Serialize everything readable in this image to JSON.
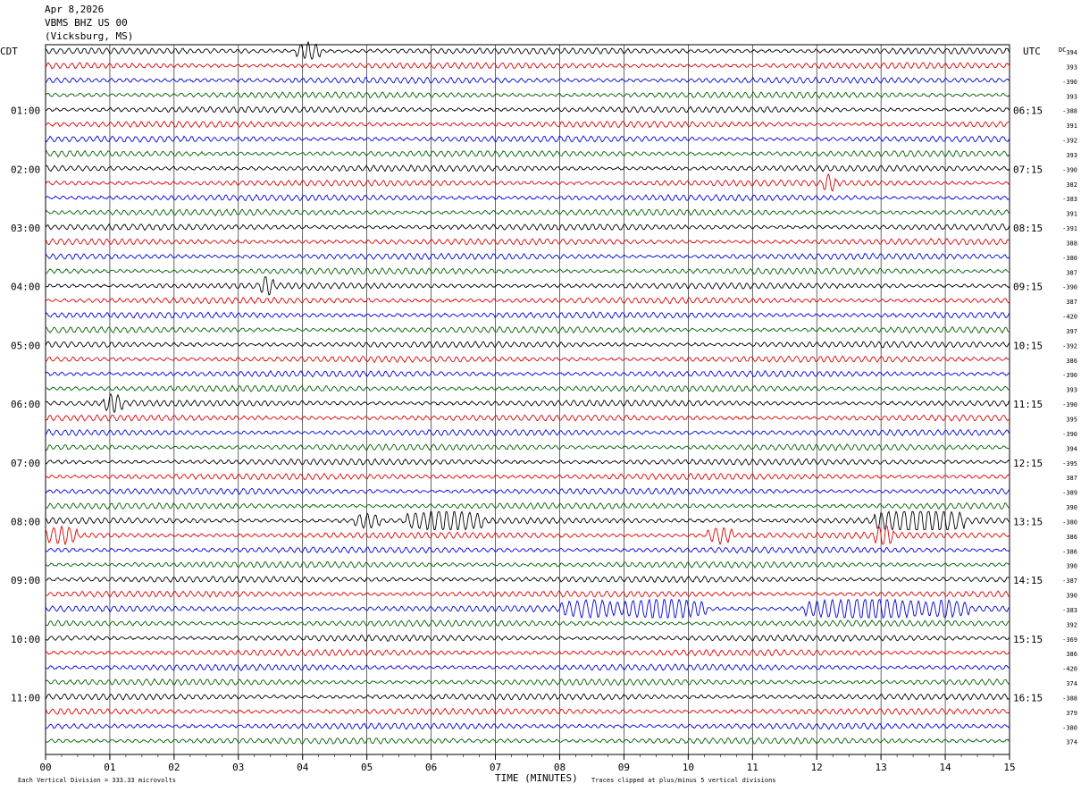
{
  "header": {
    "date": "Apr 8,2026",
    "station": "VBMS BHZ US 00",
    "location": "(Vicksburg, MS)"
  },
  "labels": {
    "left_zone": "CDT",
    "right_zone": "UTC",
    "dc_header": "DC",
    "xlabel": "TIME (MINUTES)",
    "scale_note": "Each Vertical Division =  333.33 microvolts",
    "clip_note": "Traces clipped at plus/minus 5 vertical divisions"
  },
  "chart_data": {
    "type": "line",
    "xlim": [
      0,
      15
    ],
    "x_ticks": [
      "00",
      "01",
      "02",
      "03",
      "04",
      "05",
      "06",
      "07",
      "08",
      "09",
      "10",
      "11",
      "12",
      "13",
      "14",
      "15"
    ],
    "left_hour_labels": [
      {
        "trace": 4,
        "label": "01:00"
      },
      {
        "trace": 8,
        "label": "02:00"
      },
      {
        "trace": 12,
        "label": "03:00"
      },
      {
        "trace": 16,
        "label": "04:00"
      },
      {
        "trace": 20,
        "label": "05:00"
      },
      {
        "trace": 24,
        "label": "06:00"
      },
      {
        "trace": 28,
        "label": "07:00"
      },
      {
        "trace": 32,
        "label": "08:00"
      },
      {
        "trace": 36,
        "label": "09:00"
      },
      {
        "trace": 40,
        "label": "10:00"
      },
      {
        "trace": 44,
        "label": "11:00"
      }
    ],
    "right_hour_labels": [
      {
        "trace": 4,
        "label": "06:15"
      },
      {
        "trace": 8,
        "label": "07:15"
      },
      {
        "trace": 12,
        "label": "08:15"
      },
      {
        "trace": 16,
        "label": "09:15"
      },
      {
        "trace": 20,
        "label": "10:15"
      },
      {
        "trace": 24,
        "label": "11:15"
      },
      {
        "trace": 28,
        "label": "12:15"
      },
      {
        "trace": 32,
        "label": "13:15"
      },
      {
        "trace": 36,
        "label": "14:15"
      },
      {
        "trace": 40,
        "label": "15:15"
      },
      {
        "trace": 44,
        "label": "16:15"
      }
    ],
    "dc_values": [
      "394",
      "393",
      "-390",
      "393",
      "-388",
      "391",
      "-392",
      "393",
      "-390",
      "382",
      "-383",
      "391",
      "-391",
      "388",
      "-380",
      "387",
      "-390",
      "387",
      "-420",
      "397",
      "-392",
      "386",
      "-390",
      "393",
      "-390",
      "395",
      "-390",
      "394",
      "-395",
      "387",
      "-389",
      "390",
      "-380",
      "386",
      "-386",
      "390",
      "-387",
      "390",
      "-383",
      "392",
      "-369",
      "386",
      "-420",
      "374",
      "-388",
      "379",
      "-380",
      "374"
    ],
    "trace_colors": [
      "#000000",
      "#e00000",
      "#0000e0",
      "#006000"
    ],
    "events": [
      {
        "trace": 0,
        "x_start": 3.9,
        "x_end": 4.3,
        "amplitude": 2.0
      },
      {
        "trace": 16,
        "x_start": 3.35,
        "x_end": 3.55,
        "amplitude": 2.0
      },
      {
        "trace": 24,
        "x_start": 0.9,
        "x_end": 1.2,
        "amplitude": 2.0
      },
      {
        "trace": 32,
        "x_start": 4.8,
        "x_end": 5.2,
        "amplitude": 1.6
      },
      {
        "trace": 32,
        "x_start": 5.6,
        "x_end": 6.8,
        "amplitude": 2.2
      },
      {
        "trace": 32,
        "x_start": 12.9,
        "x_end": 14.3,
        "amplitude": 2.6
      },
      {
        "trace": 33,
        "x_start": 0.0,
        "x_end": 0.5,
        "amplitude": 1.8
      },
      {
        "trace": 33,
        "x_start": 10.3,
        "x_end": 10.7,
        "amplitude": 1.8
      },
      {
        "trace": 33,
        "x_start": 12.9,
        "x_end": 13.2,
        "amplitude": 2.0
      },
      {
        "trace": 38,
        "x_start": 8.0,
        "x_end": 9.0,
        "amplitude": 1.8
      },
      {
        "trace": 38,
        "x_start": 9.0,
        "x_end": 10.3,
        "amplitude": 2.4
      },
      {
        "trace": 38,
        "x_start": 11.8,
        "x_end": 13.6,
        "amplitude": 2.4
      },
      {
        "trace": 38,
        "x_start": 13.6,
        "x_end": 14.4,
        "amplitude": 1.6
      },
      {
        "trace": 9,
        "x_start": 12.1,
        "x_end": 12.3,
        "amplitude": 1.8
      }
    ]
  }
}
